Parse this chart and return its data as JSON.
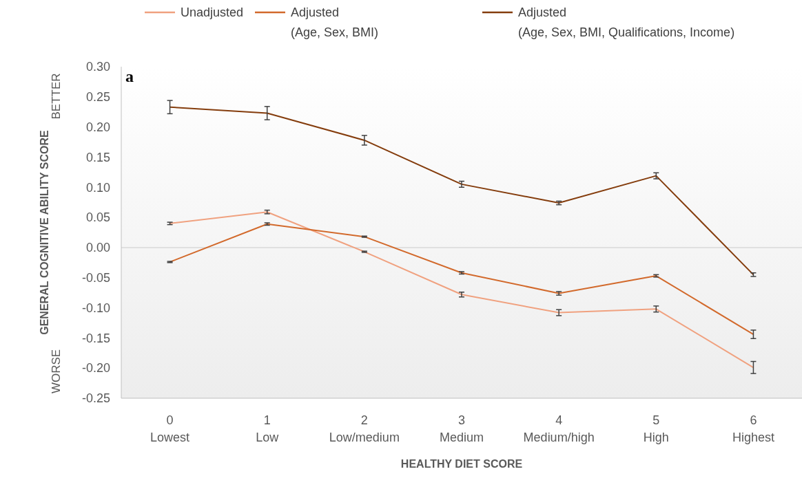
{
  "chart_data": {
    "type": "line",
    "xlabel": "HEALTHY DIET SCORE",
    "ylabel": "GENERAL COGNITIVE ABILITY SCORE",
    "categories": [
      "0\nLowest",
      "1\nLow",
      "2\nLow/medium",
      "3\nMedium",
      "4\nMedium/high",
      "5\nHigh",
      "6\nHighest"
    ],
    "series": [
      {
        "name": "Unadjusted",
        "color": "#f0a17f",
        "values": [
          0.04,
          0.059,
          -0.007,
          -0.078,
          -0.108,
          -0.102,
          -0.199
        ],
        "errors": [
          0.002,
          0.003,
          0.001,
          0.004,
          0.005,
          0.005,
          0.01
        ]
      },
      {
        "name": "Adjusted\n(Age, Sex, BMI)",
        "color": "#d2692b",
        "values": [
          -0.024,
          0.039,
          0.018,
          -0.042,
          -0.076,
          -0.047,
          -0.144
        ],
        "errors": [
          0.001,
          0.002,
          0.001,
          0.002,
          0.003,
          0.002,
          0.007
        ]
      },
      {
        "name": "Adjusted\n(Age, Sex, BMI, Qualifications, Income)",
        "color": "#843c0c",
        "values": [
          0.233,
          0.223,
          0.178,
          0.105,
          0.074,
          0.119,
          -0.045
        ],
        "errors": [
          0.011,
          0.011,
          0.008,
          0.005,
          0.003,
          0.005,
          0.003
        ]
      }
    ],
    "ylim": [
      -0.25,
      0.3
    ],
    "yticks": [
      {
        "value": -0.25,
        "label": "-0.25"
      },
      {
        "value": -0.2,
        "label": "-0.20"
      },
      {
        "value": -0.15,
        "label": "-0.15"
      },
      {
        "value": -0.1,
        "label": "-0.10"
      },
      {
        "value": -0.05,
        "label": "-0.05"
      },
      {
        "value": 0,
        "label": "0.00"
      },
      {
        "value": 0.05,
        "label": "0.05"
      },
      {
        "value": 0.1,
        "label": "0.10"
      },
      {
        "value": 0.15,
        "label": "0.15"
      },
      {
        "value": 0.2,
        "label": "0.20"
      },
      {
        "value": 0.25,
        "label": "0.25"
      },
      {
        "value": 0.3,
        "label": "0.30"
      }
    ],
    "ref_lines": [
      {
        "axis": "y",
        "value": 0,
        "color": "#d9d9d9"
      }
    ],
    "annotations": [
      {
        "text": "a"
      },
      {
        "text": "BETTER"
      },
      {
        "text": "WORSE"
      }
    ],
    "legend": "top",
    "marker": "none",
    "line_style": "solid",
    "grid": false
  }
}
